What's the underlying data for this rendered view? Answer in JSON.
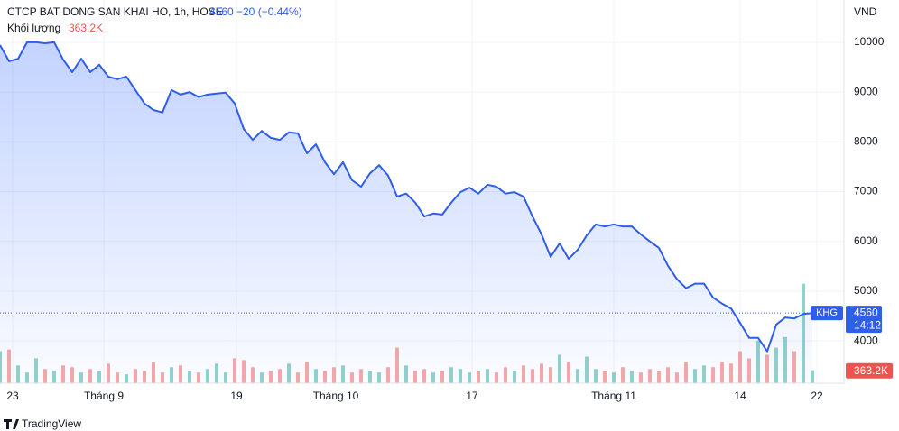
{
  "chart_data": {
    "type": "line",
    "title": "CTCP BAT DONG SAN KHAI HO, 1h, HOSE",
    "change": "−20 (−0.44%)",
    "unit": "VND",
    "symbol": "KHG",
    "countdown": "14:12",
    "volume_label": "Khối lượng",
    "brand": "TradingView",
    "xlim": [
      0,
      93.5
    ],
    "xticks": [
      {
        "value": 1.4,
        "label": "23"
      },
      {
        "value": 11.5,
        "label": "Tháng 9"
      },
      {
        "value": 26.2,
        "label": "19"
      },
      {
        "value": 37.2,
        "label": "Tháng 10"
      },
      {
        "value": 52.3,
        "label": "17"
      },
      {
        "value": 68,
        "label": "Tháng 11"
      },
      {
        "value": 82,
        "label": "14"
      },
      {
        "value": 90.5,
        "label": "22"
      }
    ],
    "ylim": [
      3150,
      10850
    ],
    "yticks": [
      4000,
      5000,
      6000,
      7000,
      8000,
      9000,
      10000
    ],
    "grid": true,
    "series": [
      {
        "name": "KHG",
        "color": "#2f5ee8",
        "values": [
          9945,
          9620,
          9670,
          10000,
          10000,
          9980,
          10000,
          9650,
          9400,
          9670,
          9400,
          9550,
          9310,
          9260,
          9310,
          9040,
          8770,
          8640,
          8590,
          9040,
          8950,
          9000,
          8900,
          8950,
          8970,
          8990,
          8770,
          8260,
          8040,
          8220,
          8080,
          8040,
          8190,
          8170,
          7770,
          7950,
          7590,
          7350,
          7590,
          7230,
          7100,
          7370,
          7530,
          7320,
          6900,
          6960,
          6780,
          6500,
          6560,
          6540,
          6780,
          6990,
          7080,
          6960,
          7140,
          7100,
          6960,
          6990,
          6900,
          6500,
          6140,
          5690,
          5960,
          5650,
          5830,
          6120,
          6340,
          6300,
          6340,
          6300,
          6300,
          6140,
          6000,
          5870,
          5510,
          5240,
          5060,
          5150,
          5150,
          4870,
          4750,
          4650,
          4360,
          4060,
          4060,
          3790,
          4330,
          4470,
          4450,
          4540,
          4560
        ]
      }
    ],
    "volume": {
      "up_color": "#26a69a",
      "down_color": "#ef5350",
      "vlim": [
        0,
        3300000
      ],
      "values": [
        900000,
        950000,
        500000,
        300000,
        700000,
        400000,
        350000,
        500000,
        450000,
        300000,
        400000,
        350000,
        550000,
        300000,
        250000,
        400000,
        350000,
        600000,
        300000,
        450000,
        500000,
        350000,
        300000,
        400000,
        550000,
        300000,
        700000,
        650000,
        450000,
        300000,
        350000,
        400000,
        550000,
        300000,
        600000,
        400000,
        350000,
        450000,
        500000,
        300000,
        400000,
        350000,
        300000,
        450000,
        1000000,
        500000,
        350000,
        400000,
        300000,
        350000,
        450000,
        400000,
        300000,
        350000,
        400000,
        300000,
        450000,
        350000,
        500000,
        400000,
        550000,
        450000,
        800000,
        600000,
        400000,
        750000,
        400000,
        350000,
        300000,
        450000,
        350000,
        300000,
        400000,
        350000,
        450000,
        300000,
        600000,
        400000,
        500000,
        450000,
        600000,
        550000,
        900000,
        700000,
        1200000,
        800000,
        1000000,
        1300000,
        900000,
        2800000,
        363200
      ],
      "value_labels": {
        "90": "363.2K"
      }
    }
  }
}
